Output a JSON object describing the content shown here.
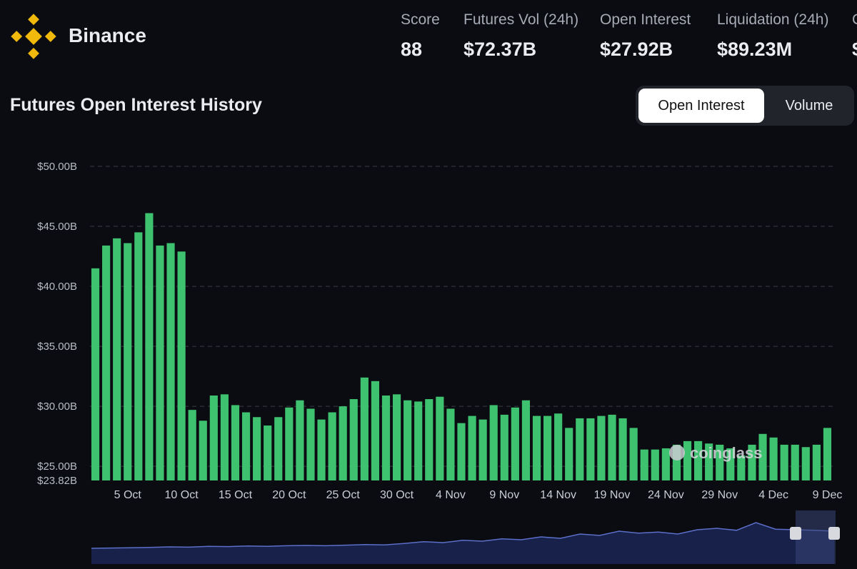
{
  "colors": {
    "background": "#0b0c12",
    "bar": "#3ec270",
    "brand_yellow": "#f0b90b",
    "navigator": "#5b6fc9"
  },
  "header": {
    "exchange_name": "Binance",
    "logo_icon": "binance-diamond-logo",
    "stats": [
      {
        "label": "Score",
        "value": "88"
      },
      {
        "label": "Futures Vol (24h)",
        "value": "$72.37B"
      },
      {
        "label": "Open Interest",
        "value": "$27.92B"
      },
      {
        "label": "Liquidation (24h)",
        "value": "$89.23M"
      },
      {
        "label": "C",
        "value": "$"
      }
    ]
  },
  "section": {
    "title": "Futures Open Interest History"
  },
  "toggle": {
    "options": [
      "Open Interest",
      "Volume"
    ],
    "active": "Open Interest"
  },
  "watermark": {
    "text": "coinglass"
  },
  "chart_data": {
    "type": "bar",
    "title": "Futures Open Interest History",
    "unit": "USD billions",
    "ylim": [
      23.82,
      50.0
    ],
    "y_ticks": [
      {
        "value": 50.0,
        "label": "$50.00B"
      },
      {
        "value": 45.0,
        "label": "$45.00B"
      },
      {
        "value": 40.0,
        "label": "$40.00B"
      },
      {
        "value": 35.0,
        "label": "$35.00B"
      },
      {
        "value": 30.0,
        "label": "$30.00B"
      },
      {
        "value": 25.0,
        "label": "$25.00B"
      },
      {
        "value": 23.82,
        "label": "$23.82B"
      }
    ],
    "x_ticks": [
      {
        "index": 3,
        "label": "5 Oct"
      },
      {
        "index": 8,
        "label": "10 Oct"
      },
      {
        "index": 13,
        "label": "15 Oct"
      },
      {
        "index": 18,
        "label": "20 Oct"
      },
      {
        "index": 23,
        "label": "25 Oct"
      },
      {
        "index": 28,
        "label": "30 Oct"
      },
      {
        "index": 33,
        "label": "4 Nov"
      },
      {
        "index": 38,
        "label": "9 Nov"
      },
      {
        "index": 43,
        "label": "14 Nov"
      },
      {
        "index": 48,
        "label": "19 Nov"
      },
      {
        "index": 53,
        "label": "24 Nov"
      },
      {
        "index": 58,
        "label": "29 Nov"
      },
      {
        "index": 63,
        "label": "4 Dec"
      },
      {
        "index": 68,
        "label": "9 Dec"
      }
    ],
    "values": [
      41.5,
      43.4,
      44.0,
      43.6,
      44.5,
      46.1,
      43.4,
      43.6,
      42.9,
      29.7,
      28.8,
      30.9,
      31.0,
      30.1,
      29.5,
      29.1,
      28.4,
      29.1,
      29.9,
      30.5,
      29.8,
      28.9,
      29.5,
      30.0,
      30.6,
      32.4,
      32.1,
      30.9,
      31.0,
      30.5,
      30.4,
      30.6,
      30.8,
      29.8,
      28.6,
      29.2,
      28.9,
      30.1,
      29.3,
      29.9,
      30.5,
      29.2,
      29.2,
      29.4,
      28.2,
      29.0,
      29.0,
      29.2,
      29.3,
      29.0,
      28.2,
      26.4,
      26.4,
      26.5,
      26.8,
      27.1,
      27.1,
      26.9,
      26.8,
      26.5,
      25.9,
      26.8,
      27.7,
      27.4,
      26.8,
      26.8,
      26.6,
      26.8,
      28.2
    ],
    "navigator": {
      "trend": [
        0.05,
        0.06,
        0.07,
        0.08,
        0.1,
        0.09,
        0.12,
        0.11,
        0.13,
        0.12,
        0.14,
        0.15,
        0.14,
        0.16,
        0.18,
        0.17,
        0.22,
        0.28,
        0.25,
        0.33,
        0.3,
        0.38,
        0.35,
        0.45,
        0.4,
        0.55,
        0.5,
        0.65,
        0.58,
        0.62,
        0.55,
        0.7,
        0.75,
        0.68,
        0.95,
        0.72,
        0.7,
        0.68,
        0.65
      ]
    }
  }
}
